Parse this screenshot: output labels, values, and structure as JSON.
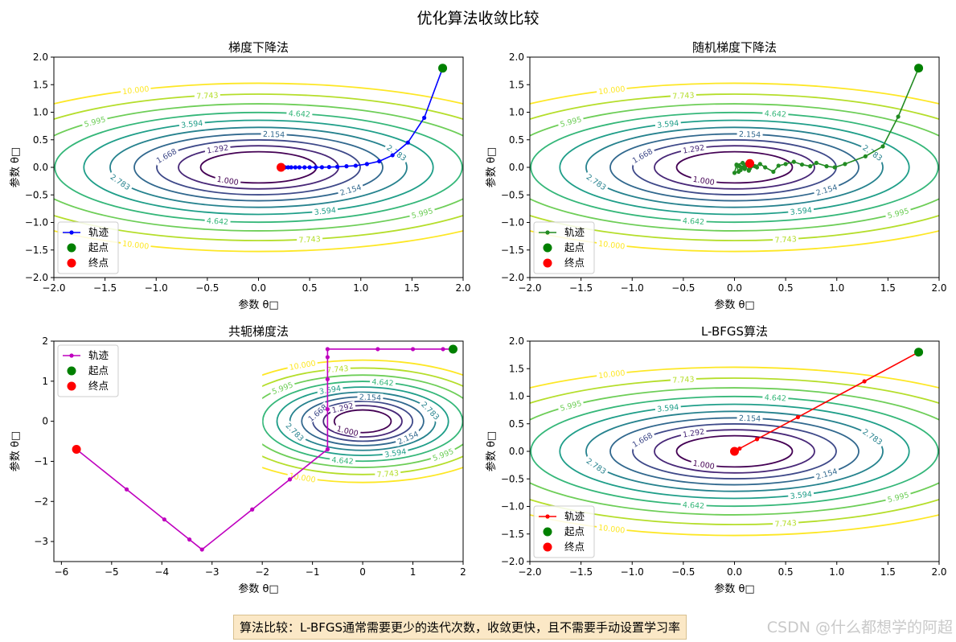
{
  "figure": {
    "suptitle": "优化算法收敛比较",
    "note": "算法比较：L-BFGS通常需要更少的迭代次数，收敛更快，且不需要手动设置学习率",
    "watermark": "CSDN @什么都想学的阿超"
  },
  "chart_data": [
    {
      "type": "line",
      "title": "梯度下降法",
      "xlabel": "参数 θ□",
      "ylabel": "参数 θ□",
      "xlim": [
        -2,
        2
      ],
      "ylim": [
        -2,
        2
      ],
      "xticks": [
        -2.0,
        -1.5,
        -1.0,
        -0.5,
        0.0,
        0.5,
        1.0,
        1.5,
        2.0
      ],
      "yticks": [
        -2.0,
        -1.5,
        -1.0,
        -0.5,
        0.0,
        0.5,
        1.0,
        1.5,
        2.0
      ],
      "tick_decimals": 1,
      "contour": {
        "function": "1 + x^2 + 4*y^2",
        "levels": [
          1.0,
          1.292,
          1.668,
          2.154,
          2.783,
          3.594,
          4.642,
          5.995,
          7.743,
          10.0
        ],
        "level_labels": [
          "1.000",
          "1.292",
          "1.668",
          "2.154",
          "2.783",
          "3.594",
          "4.642",
          "5.995",
          "7.743",
          "10.000"
        ],
        "colors": [
          "#440154",
          "#482878",
          "#3e4989",
          "#31688e",
          "#26828e",
          "#1f9e89",
          "#35b779",
          "#6ece58",
          "#b5de2b",
          "#fde725"
        ]
      },
      "series": {
        "name": "轨迹",
        "color": "#0000ff",
        "x": [
          1.8,
          1.62,
          1.46,
          1.31,
          1.18,
          1.06,
          0.95,
          0.86,
          0.77,
          0.69,
          0.62,
          0.56,
          0.5,
          0.45,
          0.4,
          0.36,
          0.32,
          0.29,
          0.26,
          0.23,
          0.22
        ],
        "y": [
          1.8,
          0.9,
          0.45,
          0.22,
          0.11,
          0.06,
          0.03,
          0.02,
          0.01,
          0.005,
          0.002,
          0.001,
          0,
          0,
          0,
          0,
          0,
          0,
          0,
          0,
          0
        ]
      },
      "start": {
        "label": "起点",
        "color": "#008000",
        "x": 1.8,
        "y": 1.8
      },
      "end": {
        "label": "终点",
        "color": "#ff0000",
        "x": 0.22,
        "y": 0.0
      },
      "legend_position": "lower-left"
    },
    {
      "type": "line",
      "title": "随机梯度下降法",
      "xlabel": "参数 θ□",
      "ylabel": "参数 θ□",
      "xlim": [
        -2,
        2
      ],
      "ylim": [
        -2,
        2
      ],
      "xticks": [
        -2.0,
        -1.5,
        -1.0,
        -0.5,
        0.0,
        0.5,
        1.0,
        1.5,
        2.0
      ],
      "yticks": [
        -2.0,
        -1.5,
        -1.0,
        -0.5,
        0.0,
        0.5,
        1.0,
        1.5,
        2.0
      ],
      "tick_decimals": 1,
      "contour": {
        "function": "1 + x^2 + 4*y^2",
        "levels": [
          1.0,
          1.292,
          1.668,
          2.154,
          2.783,
          3.594,
          4.642,
          5.995,
          7.743,
          10.0
        ],
        "level_labels": [
          "1.000",
          "1.292",
          "1.668",
          "2.154",
          "2.783",
          "3.594",
          "4.642",
          "5.995",
          "7.743",
          "10.000"
        ],
        "colors": [
          "#440154",
          "#482878",
          "#3e4989",
          "#31688e",
          "#26828e",
          "#1f9e89",
          "#35b779",
          "#6ece58",
          "#b5de2b",
          "#fde725"
        ]
      },
      "series": {
        "name": "轨迹",
        "color": "#228b22",
        "x": [
          1.8,
          1.6,
          1.45,
          1.28,
          1.08,
          0.98,
          0.9,
          0.8,
          0.74,
          0.66,
          0.58,
          0.5,
          0.43,
          0.38,
          0.3,
          0.25,
          0.2,
          0.15,
          0.12,
          0.08,
          0.04,
          0.02,
          0.0,
          0.06,
          0.1,
          0.14,
          0.18,
          0.22,
          0.15,
          0.1,
          0.05,
          0.02,
          0.08,
          0.12,
          0.15
        ],
        "y": [
          1.8,
          0.92,
          0.38,
          0.2,
          0.06,
          0.0,
          0.02,
          0.08,
          0.02,
          0.05,
          0.1,
          0.06,
          0.03,
          -0.08,
          0.0,
          0.06,
          0.02,
          -0.02,
          0.05,
          0.0,
          -0.08,
          0.04,
          -0.1,
          -0.05,
          0.02,
          -0.06,
          0.03,
          0.0,
          0.06,
          -0.03,
          0.02,
          0.05,
          0.08,
          0.06,
          0.07
        ]
      },
      "start": {
        "label": "起点",
        "color": "#008000",
        "x": 1.8,
        "y": 1.8
      },
      "end": {
        "label": "终点",
        "color": "#ff0000",
        "x": 0.15,
        "y": 0.07
      },
      "legend_position": "lower-left"
    },
    {
      "type": "line",
      "title": "共轭梯度法",
      "xlabel": "参数 θ□",
      "ylabel": "参数 θ□",
      "xlim": [
        -6.15,
        2.0
      ],
      "ylim": [
        -3.5,
        2.0
      ],
      "xticks": [
        -6,
        -5,
        -4,
        -3,
        -2,
        -1,
        0,
        1,
        2
      ],
      "yticks": [
        -3,
        -2,
        -1,
        0,
        1,
        2
      ],
      "tick_decimals": 0,
      "contour": {
        "function": "1 + x^2 + 4*y^2",
        "domain": {
          "x": [
            -2,
            2
          ],
          "y": [
            -2,
            2
          ]
        },
        "levels": [
          1.0,
          1.292,
          1.668,
          2.154,
          2.783,
          3.594,
          4.642,
          5.995,
          7.743,
          10.0
        ],
        "level_labels": [
          "1.000",
          "1.292",
          "1.668",
          "2.154",
          "2.783",
          "3.594",
          "4.642",
          "5.995",
          "7.743",
          "10.000"
        ],
        "colors": [
          "#440154",
          "#482878",
          "#3e4989",
          "#31688e",
          "#26828e",
          "#1f9e89",
          "#35b779",
          "#6ece58",
          "#b5de2b",
          "#fde725"
        ]
      },
      "series": {
        "name": "轨迹",
        "color": "#bf00bf",
        "x": [
          1.8,
          1.6,
          1.0,
          0.3,
          -0.7,
          -0.7,
          -0.7,
          -0.7,
          -0.7,
          -1.45,
          -2.2,
          -3.2,
          -3.45,
          -3.95,
          -4.7,
          -5.7
        ],
        "y": [
          1.8,
          1.8,
          1.8,
          1.8,
          1.8,
          1.6,
          1.05,
          0.3,
          -0.7,
          -1.45,
          -2.2,
          -3.2,
          -2.95,
          -2.45,
          -1.7,
          -0.7
        ]
      },
      "start": {
        "label": "起点",
        "color": "#008000",
        "x": 1.8,
        "y": 1.8
      },
      "end": {
        "label": "终点",
        "color": "#ff0000",
        "x": -5.7,
        "y": -0.7
      },
      "legend_position": "upper-left"
    },
    {
      "type": "line",
      "title": "L-BFGS算法",
      "xlabel": "参数 θ□",
      "ylabel": "参数 θ□",
      "xlim": [
        -2,
        2
      ],
      "ylim": [
        -2,
        2
      ],
      "xticks": [
        -2.0,
        -1.5,
        -1.0,
        -0.5,
        0.0,
        0.5,
        1.0,
        1.5,
        2.0
      ],
      "yticks": [
        -2.0,
        -1.5,
        -1.0,
        -0.5,
        0.0,
        0.5,
        1.0,
        1.5,
        2.0
      ],
      "tick_decimals": 1,
      "contour": {
        "function": "1 + x^2 + 4*y^2",
        "levels": [
          1.0,
          1.292,
          1.668,
          2.154,
          2.783,
          3.594,
          4.642,
          5.995,
          7.743,
          10.0
        ],
        "level_labels": [
          "1.000",
          "1.292",
          "1.668",
          "2.154",
          "2.783",
          "3.594",
          "4.642",
          "5.995",
          "7.743",
          "10.000"
        ],
        "colors": [
          "#440154",
          "#482878",
          "#3e4989",
          "#31688e",
          "#26828e",
          "#1f9e89",
          "#35b779",
          "#6ece58",
          "#b5de2b",
          "#fde725"
        ]
      },
      "series": {
        "name": "轨迹",
        "color": "#ff0000",
        "x": [
          1.8,
          1.27,
          0.62,
          0.22,
          0.05,
          0.0
        ],
        "y": [
          1.8,
          1.27,
          0.62,
          0.22,
          0.05,
          0.0
        ]
      },
      "start": {
        "label": "起点",
        "color": "#008000",
        "x": 1.8,
        "y": 1.8
      },
      "end": {
        "label": "终点",
        "color": "#ff0000",
        "x": 0.0,
        "y": 0.0
      },
      "legend_position": "lower-left"
    }
  ]
}
